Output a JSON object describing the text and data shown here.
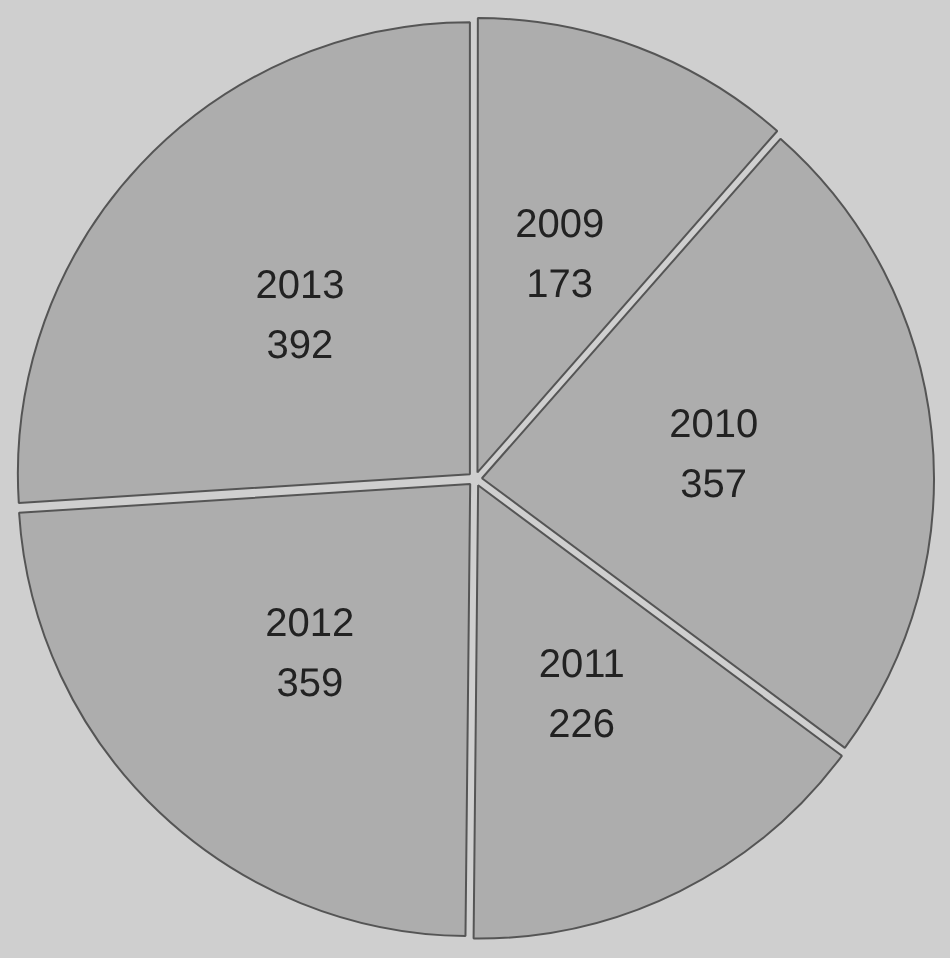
{
  "chart_data": {
    "type": "pie",
    "categories": [
      "2009",
      "2010",
      "2011",
      "2012",
      "2013"
    ],
    "values": [
      173,
      357,
      226,
      359,
      392
    ],
    "colors": [
      "#adadad",
      "#adadad",
      "#adadad",
      "#adadad",
      "#adadad"
    ],
    "data_labels": true,
    "legend": false
  }
}
